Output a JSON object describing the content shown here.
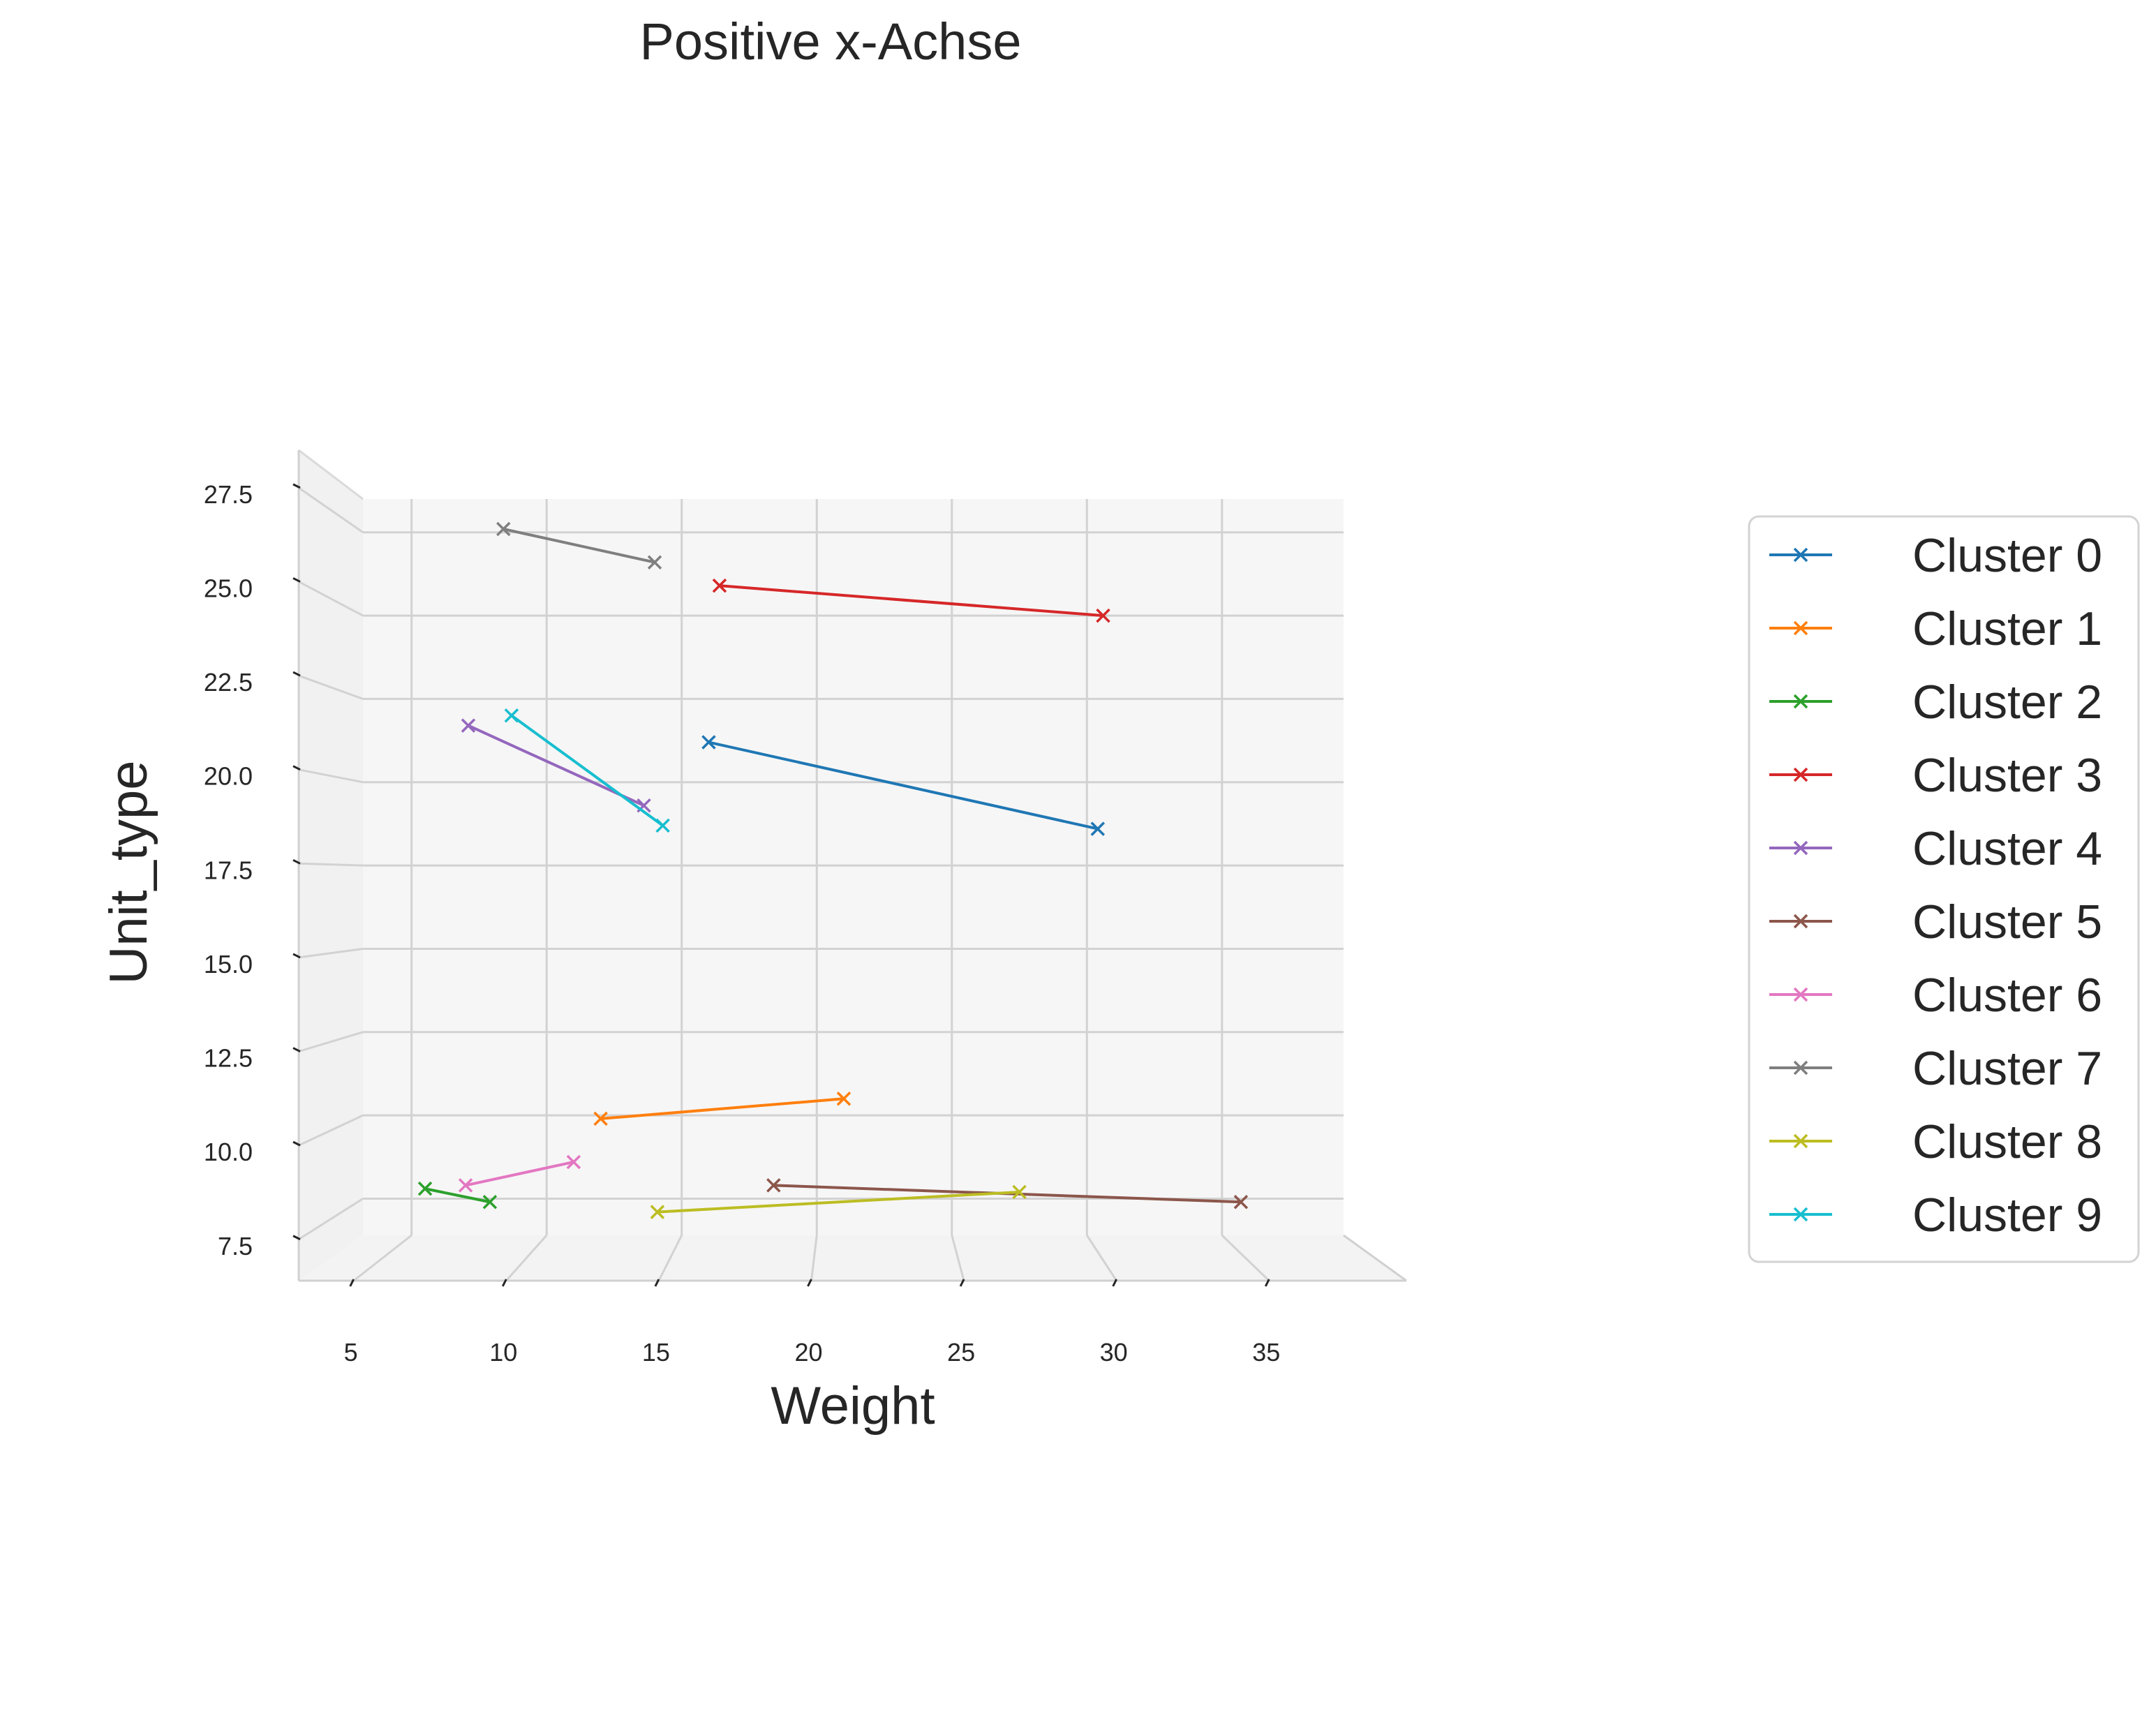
{
  "chart_data": {
    "type": "line",
    "title": "Positive x-Achse",
    "xlabel": "Weight",
    "ylabel": "Unit_type",
    "xlim": [
      3.2,
      39.5
    ],
    "ylim": [
      6.4,
      28.5
    ],
    "x_ticks": [
      5,
      10,
      15,
      20,
      25,
      30,
      35
    ],
    "y_ticks": [
      7.5,
      10.0,
      12.5,
      15.0,
      17.5,
      20.0,
      22.5,
      25.0,
      27.5
    ],
    "marker": "x",
    "grid": true,
    "legend_position": "right",
    "series": [
      {
        "name": "Cluster 0",
        "color": "#1f77b4",
        "points": [
          [
            16.0,
            21.2
          ],
          [
            30.4,
            18.6
          ]
        ]
      },
      {
        "name": "Cluster 1",
        "color": "#ff7f0e",
        "points": [
          [
            12.0,
            9.9
          ],
          [
            21.0,
            10.5
          ]
        ]
      },
      {
        "name": "Cluster 2",
        "color": "#2ca02c",
        "points": [
          [
            5.5,
            7.8
          ],
          [
            7.9,
            7.4
          ]
        ]
      },
      {
        "name": "Cluster 3",
        "color": "#d62728",
        "points": [
          [
            16.4,
            25.9
          ],
          [
            30.6,
            25.0
          ]
        ]
      },
      {
        "name": "Cluster 4",
        "color": "#9467bd",
        "points": [
          [
            7.1,
            21.7
          ],
          [
            13.6,
            19.3
          ]
        ]
      },
      {
        "name": "Cluster 5",
        "color": "#8c564b",
        "points": [
          [
            18.4,
            7.9
          ],
          [
            35.7,
            7.4
          ]
        ]
      },
      {
        "name": "Cluster 6",
        "color": "#e377c2",
        "points": [
          [
            7.0,
            7.9
          ],
          [
            11.0,
            8.6
          ]
        ]
      },
      {
        "name": "Cluster 7",
        "color": "#7f7f7f",
        "points": [
          [
            8.4,
            27.6
          ],
          [
            14.0,
            26.6
          ]
        ]
      },
      {
        "name": "Cluster 8",
        "color": "#bcbd22",
        "points": [
          [
            14.1,
            7.1
          ],
          [
            27.5,
            7.7
          ]
        ]
      },
      {
        "name": "Cluster 9",
        "color": "#17becf",
        "points": [
          [
            8.7,
            22.0
          ],
          [
            14.3,
            18.7
          ]
        ]
      }
    ]
  }
}
